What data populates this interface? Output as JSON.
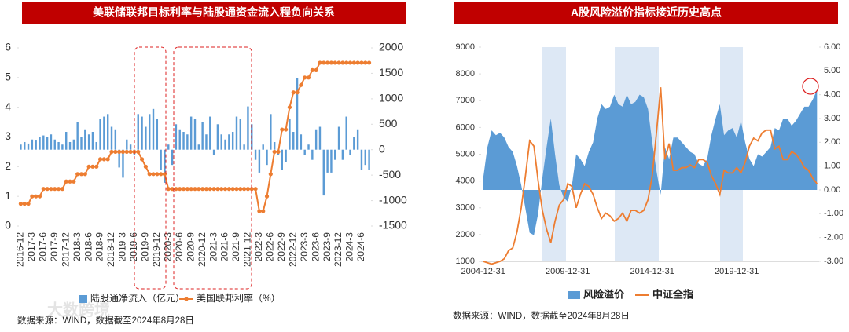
{
  "watermark": "大数跨境",
  "chart_data": [
    {
      "type": "combo",
      "title": "美联储联邦目标利率与陆股通资金流入程负向关系",
      "source": "数据来源：WIND，数据截至2024年8月28日",
      "categories": [
        "2016-12",
        null,
        null,
        "2017-3",
        null,
        null,
        "2017-6",
        null,
        null,
        "2017-9",
        null,
        null,
        "2017-12",
        null,
        null,
        "2018-3",
        null,
        null,
        "2018-6",
        null,
        null,
        "2018-9",
        null,
        null,
        "2018-12",
        null,
        null,
        "2019-3",
        null,
        null,
        "2019-6",
        null,
        null,
        "2019-9",
        null,
        null,
        "2019-12",
        null,
        null,
        "2020-3",
        null,
        null,
        "2020-6",
        null,
        null,
        "2020-9",
        null,
        null,
        "2020-12",
        null,
        null,
        "2021-3",
        null,
        null,
        "2021-6",
        null,
        null,
        "2021-9",
        null,
        null,
        "2021-12",
        null,
        null,
        "2022-3",
        null,
        null,
        "2022-6",
        null,
        null,
        "2022-9",
        null,
        null,
        "2022-12",
        null,
        null,
        "2023-3",
        null,
        null,
        "2023-6",
        null,
        null,
        "2023-9",
        null,
        null,
        "2023-12",
        null,
        null,
        "2024-3",
        null,
        null,
        "2024-6",
        null,
        null
      ],
      "series": [
        {
          "name": "陆股通净流入（亿元）",
          "type": "bar",
          "axis": "y2",
          "color": "#5b9bd5",
          "values": [
            100,
            150,
            120,
            200,
            180,
            250,
            280,
            250,
            300,
            200,
            150,
            100,
            350,
            150,
            200,
            550,
            250,
            400,
            300,
            350,
            150,
            600,
            650,
            700,
            450,
            400,
            -350,
            -550,
            200,
            100,
            -100,
            700,
            650,
            450,
            700,
            800,
            600,
            -400,
            -650,
            100,
            -300,
            500,
            400,
            350,
            300,
            650,
            600,
            100,
            550,
            300,
            650,
            -100,
            500,
            300,
            200,
            300,
            350,
            650,
            600,
            100,
            850,
            500,
            -200,
            -450,
            100,
            -300,
            700,
            150,
            -100,
            -400,
            -250,
            600,
            350,
            1400,
            300,
            -100,
            100,
            -200,
            400,
            450,
            -900,
            -450,
            -450,
            -200,
            450,
            -200,
            650,
            -100,
            250,
            400,
            -400,
            -300,
            -400
          ]
        },
        {
          "name": "美国联邦利率（%）",
          "type": "line",
          "axis": "y",
          "color": "#ed7d31",
          "markers": true,
          "values": [
            0.75,
            0.75,
            0.75,
            1.0,
            1.0,
            1.0,
            1.25,
            1.25,
            1.25,
            1.25,
            1.25,
            1.25,
            1.5,
            1.5,
            1.5,
            1.75,
            1.75,
            1.75,
            2.0,
            2.0,
            2.0,
            2.25,
            2.25,
            2.25,
            2.5,
            2.5,
            2.5,
            2.5,
            2.5,
            2.5,
            2.5,
            2.5,
            2.25,
            2.0,
            1.75,
            1.75,
            1.75,
            1.75,
            1.75,
            1.25,
            1.25,
            1.25,
            1.25,
            1.25,
            1.25,
            1.25,
            1.25,
            1.25,
            1.25,
            1.25,
            1.25,
            1.25,
            1.25,
            1.25,
            1.25,
            1.25,
            1.25,
            1.25,
            1.25,
            1.25,
            1.25,
            1.25,
            1.25,
            0.5,
            0.5,
            1.0,
            1.75,
            2.5,
            2.5,
            3.25,
            3.25,
            4.0,
            4.5,
            4.5,
            4.75,
            5.0,
            5.0,
            5.25,
            5.25,
            5.5,
            5.5,
            5.5,
            5.5,
            5.5,
            5.5,
            5.5,
            5.5,
            5.5,
            5.5,
            5.5,
            5.5,
            5.5,
            5.5
          ]
        }
      ],
      "ylim": [
        0,
        6
      ],
      "yticks": [
        0,
        1,
        2,
        3,
        4,
        5,
        6
      ],
      "y2lim": [
        -1500,
        2000
      ],
      "y2ticks": [
        -1500,
        -1000,
        -500,
        0,
        500,
        1000,
        1500,
        2000
      ]
    },
    {
      "type": "combo",
      "title": "A股风险溢价指标接近历史高点",
      "source": "数据来源：WIND，数据截至2024年8月28日",
      "categories": [
        "2004-12-31",
        null,
        null,
        null,
        null,
        null,
        null,
        null,
        null,
        null,
        null,
        null,
        null,
        null,
        null,
        null,
        null,
        null,
        null,
        null,
        "2009-12-31",
        null,
        null,
        null,
        null,
        null,
        null,
        null,
        null,
        null,
        null,
        null,
        null,
        null,
        null,
        null,
        null,
        null,
        null,
        null,
        "2014-12-31",
        null,
        null,
        null,
        null,
        null,
        null,
        null,
        null,
        null,
        null,
        null,
        null,
        null,
        null,
        null,
        null,
        null,
        null,
        null,
        "2019-12-31",
        null,
        null,
        null,
        null,
        null,
        null,
        null,
        null,
        null,
        null,
        null,
        null,
        null,
        null,
        null,
        null,
        null,
        null,
        null
      ],
      "series": [
        {
          "name": "风险溢价",
          "type": "area",
          "axis": "y2",
          "color": "#5b9bd5",
          "values": [
            0.5,
            1.8,
            2.5,
            2.3,
            2.4,
            2.2,
            1.8,
            1.6,
            1.0,
            0.2,
            -0.8,
            -1.8,
            -1.9,
            -1.0,
            0.5,
            1.8,
            3.0,
            1.5,
            0.2,
            -0.3,
            -0.5,
            0.2,
            1.5,
            1.3,
            1.0,
            1.6,
            2.0,
            3.0,
            3.6,
            3.4,
            3.5,
            4.0,
            3.6,
            3.5,
            4.0,
            3.6,
            3.7,
            4.0,
            3.9,
            3.4,
            2.0,
            0.8,
            -0.2,
            1.8,
            1.3,
            2.2,
            2.2,
            2.0,
            1.8,
            1.6,
            1.5,
            1.1,
            1.0,
            1.3,
            2.3,
            3.0,
            3.6,
            2.3,
            2.5,
            2.6,
            2.2,
            2.9,
            2.0,
            1.3,
            1.0,
            1.5,
            1.4,
            1.6,
            1.8,
            2.6,
            2.5,
            3.0,
            3.0,
            2.7,
            2.9,
            3.2,
            3.5,
            3.5,
            3.8,
            4.2
          ]
        },
        {
          "name": "中证全指",
          "type": "line",
          "axis": "y",
          "color": "#ed7d31",
          "values": [
            1000,
            950,
            900,
            950,
            1000,
            1100,
            1400,
            1500,
            2100,
            3000,
            4200,
            5500,
            5300,
            4000,
            2900,
            2200,
            1700,
            2500,
            3100,
            3300,
            3900,
            3800,
            3000,
            3500,
            3900,
            3800,
            3500,
            3000,
            2600,
            2800,
            2700,
            2500,
            2600,
            2800,
            2500,
            2900,
            2900,
            2800,
            2900,
            3300,
            4200,
            5800,
            7500,
            4800,
            5400,
            4400,
            4400,
            4500,
            4500,
            4600,
            4500,
            4800,
            4800,
            4700,
            4200,
            3900,
            3500,
            4400,
            4300,
            4300,
            4500,
            4300,
            4700,
            5300,
            5600,
            5500,
            5800,
            5900,
            5900,
            5200,
            5300,
            4800,
            4800,
            5100,
            5000,
            4800,
            4500,
            4400,
            4100,
            3900
          ]
        }
      ],
      "ylim": [
        1000,
        9000
      ],
      "yticks": [
        1000,
        2000,
        3000,
        4000,
        5000,
        6000,
        7000,
        8000,
        9000
      ],
      "y2lim": [
        -3,
        6
      ],
      "y2ticks": [
        {
          "value": -3,
          "label": "-3.00"
        },
        {
          "value": -2,
          "label": "-2.00"
        },
        {
          "value": -1,
          "label": "-1.00"
        },
        {
          "value": 0,
          "label": "0.00"
        },
        {
          "value": 1,
          "label": "1.00"
        },
        {
          "value": 2,
          "label": "2.00"
        },
        {
          "value": 3,
          "label": "3.00"
        },
        {
          "value": 4,
          "label": "4.00"
        },
        {
          "value": 5,
          "label": "5.00"
        },
        {
          "value": 6,
          "label": "6.00"
        }
      ]
    }
  ]
}
